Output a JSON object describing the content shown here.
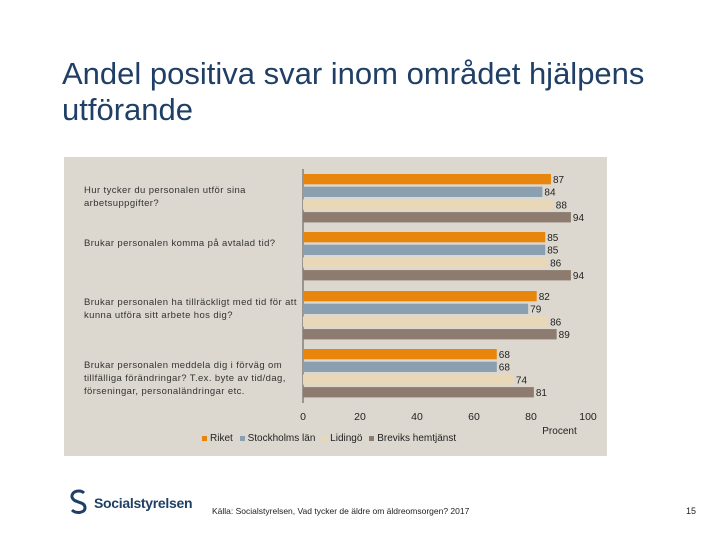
{
  "title": "Andel positiva svar inom området hjälpens utförande",
  "colors": {
    "riket": "#e8850c",
    "stockholm": "#8aa0b0",
    "lidingo": "#e8d8b8",
    "breviks": "#8c7b6e"
  },
  "chart_data": {
    "type": "bar",
    "orientation": "horizontal",
    "categories": [
      "Hur tycker du personalen utför sina arbetsuppgifter?",
      "Brukar personalen komma på avtalad tid?",
      "Brukar personalen ha tillräckligt med tid för att kunna utföra sitt arbete hos dig?",
      "Brukar personalen meddela dig i förväg om tillfälliga förändringar? T.ex. byte av tid/dag, förseningar, personaländringar etc."
    ],
    "series": [
      {
        "name": "Riket",
        "values": [
          87,
          85,
          82,
          68
        ]
      },
      {
        "name": "Stockholms län",
        "values": [
          84,
          85,
          79,
          68
        ]
      },
      {
        "name": "Lidingö",
        "values": [
          88,
          86,
          86,
          74
        ]
      },
      {
        "name": "Breviks hemtjänst",
        "values": [
          94,
          94,
          89,
          81
        ]
      }
    ],
    "xlabel": "Procent",
    "xlim": [
      0,
      100
    ],
    "xticks": [
      0,
      20,
      40,
      60,
      80,
      100
    ],
    "legend": "bottom"
  },
  "footer": {
    "source": "Källa: Socialstyrelsen, Vad tycker de äldre om äldreomsorgen? 2017",
    "page": "15",
    "logo_text": "Socialstyrelsen"
  }
}
